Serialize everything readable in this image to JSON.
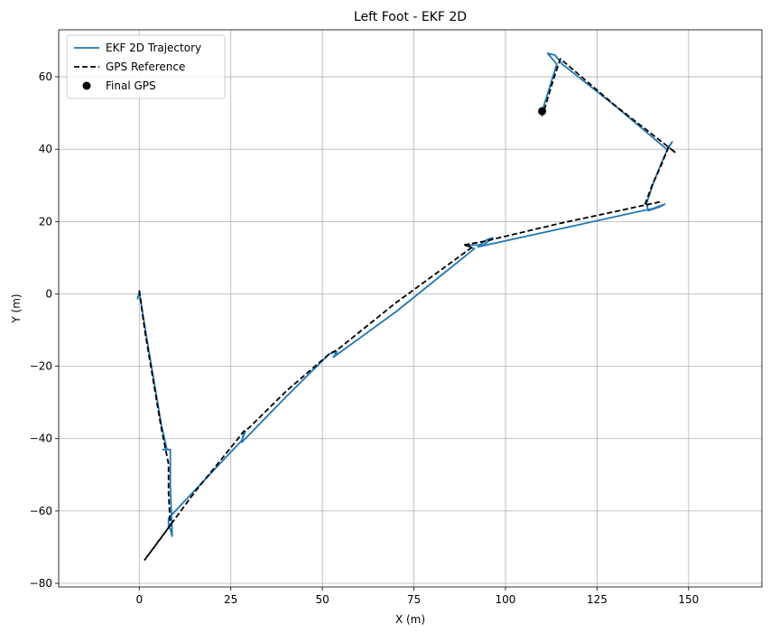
{
  "chart_data": {
    "type": "line",
    "title": "Left Foot - EKF 2D",
    "xlabel": "X (m)",
    "ylabel": "Y (m)",
    "xlim": [
      -22,
      170
    ],
    "ylim": [
      -81,
      73
    ],
    "xticks": [
      0,
      25,
      50,
      75,
      100,
      125,
      150
    ],
    "yticks": [
      -80,
      -60,
      -40,
      -20,
      0,
      20,
      40,
      60
    ],
    "grid": true,
    "legend_position": "top-left",
    "series": [
      {
        "name": "EKF 2D Trajectory",
        "style": "solid",
        "color": "#1f77b4",
        "points": [
          [
            -0.5,
            -1.5
          ],
          [
            0.0,
            0.5
          ],
          [
            2.0,
            -12.0
          ],
          [
            4.0,
            -24.0
          ],
          [
            6.0,
            -36.0
          ],
          [
            7.5,
            -42.8
          ],
          [
            6.5,
            -43.0
          ],
          [
            8.5,
            -43.0
          ],
          [
            8.5,
            -53.0
          ],
          [
            9.0,
            -67.0
          ],
          [
            8.5,
            -65.0
          ],
          [
            8.0,
            -64.5
          ],
          [
            8.0,
            -62.0
          ],
          [
            28.0,
            -40.5
          ],
          [
            29.0,
            -38.0
          ],
          [
            28.5,
            -38.5
          ],
          [
            28.0,
            -41.0
          ],
          [
            40.0,
            -28.5
          ],
          [
            52.0,
            -16.5
          ],
          [
            54.0,
            -16.0
          ],
          [
            53.0,
            -17.5
          ],
          [
            70.0,
            -5.0
          ],
          [
            91.5,
            12.5
          ],
          [
            89.0,
            13.5
          ],
          [
            93.0,
            13.5
          ],
          [
            95.0,
            15.0
          ],
          [
            96.5,
            15.5
          ],
          [
            94.0,
            13.5
          ],
          [
            92.5,
            13.0
          ],
          [
            137.5,
            23.0
          ],
          [
            140.0,
            23.5
          ],
          [
            143.5,
            24.8
          ],
          [
            142.0,
            24.0
          ],
          [
            139.0,
            23.0
          ],
          [
            138.5,
            25.0
          ],
          [
            140.5,
            31.0
          ],
          [
            142.5,
            36.0
          ],
          [
            144.0,
            39.5
          ],
          [
            145.5,
            42.0
          ],
          [
            144.0,
            40.0
          ],
          [
            130.5,
            51.5
          ],
          [
            115.5,
            63.5
          ],
          [
            113.5,
            66.0
          ],
          [
            111.5,
            66.5
          ],
          [
            114.0,
            63.5
          ],
          [
            112.0,
            57.0
          ],
          [
            110.0,
            50.5
          ],
          [
            110.0,
            49.0
          ]
        ]
      },
      {
        "name": "GPS Reference",
        "style": "dashed",
        "color": "#000000",
        "points": [
          [
            0.0,
            1.0
          ],
          [
            1.5,
            -10.0
          ],
          [
            4.0,
            -25.0
          ],
          [
            6.0,
            -37.0
          ],
          [
            8.0,
            -47.0
          ],
          [
            8.0,
            -55.0
          ],
          [
            8.5,
            -64.0
          ],
          [
            1.5,
            -73.5
          ],
          [
            15.0,
            -55.0
          ],
          [
            27.0,
            -40.0
          ],
          [
            28.5,
            -38.0
          ],
          [
            30.0,
            -37.0
          ],
          [
            40.0,
            -27.0
          ],
          [
            52.0,
            -16.5
          ],
          [
            54.0,
            -15.5
          ],
          [
            70.0,
            -2.5
          ],
          [
            91.0,
            13.0
          ],
          [
            88.5,
            13.5
          ],
          [
            94.0,
            14.5
          ],
          [
            115.0,
            19.5
          ],
          [
            142.5,
            25.5
          ],
          [
            138.0,
            24.5
          ],
          [
            140.0,
            30.0
          ],
          [
            142.5,
            35.5
          ],
          [
            144.5,
            40.5
          ],
          [
            146.5,
            39.0
          ],
          [
            130.0,
            52.0
          ],
          [
            115.0,
            65.0
          ],
          [
            113.0,
            59.0
          ],
          [
            110.5,
            50.5
          ]
        ]
      },
      {
        "name": "Final GPS",
        "style": "marker",
        "color": "#000000",
        "points": [
          [
            110.0,
            50.5
          ]
        ]
      }
    ]
  }
}
